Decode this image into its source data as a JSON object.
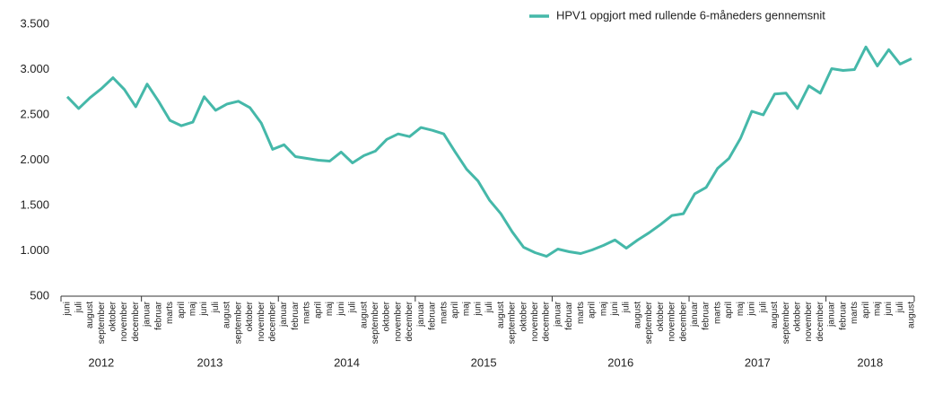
{
  "chart_data": {
    "type": "line",
    "categories": [
      "juni",
      "juli",
      "august",
      "september",
      "oktober",
      "november",
      "december",
      "januar",
      "februar",
      "marts",
      "april",
      "maj",
      "juni",
      "juli",
      "august",
      "september",
      "oktober",
      "november",
      "december",
      "januar",
      "februar",
      "marts",
      "april",
      "maj",
      "juni",
      "juli",
      "august",
      "september",
      "oktober",
      "november",
      "december",
      "januar",
      "februar",
      "marts",
      "april",
      "maj",
      "juni",
      "juli",
      "august",
      "september",
      "oktober",
      "november",
      "december",
      "januar",
      "februar",
      "marts",
      "april",
      "maj",
      "juni",
      "juli",
      "august",
      "september",
      "oktober",
      "november",
      "december",
      "januar",
      "februar",
      "marts",
      "april",
      "maj",
      "juni",
      "juli",
      "august",
      "september",
      "oktober",
      "november",
      "december",
      "januar",
      "februar",
      "marts",
      "april",
      "maj",
      "juni",
      "juli",
      "august"
    ],
    "years": [
      "2012",
      "2013",
      "2014",
      "2015",
      "2016",
      "2017",
      "2018"
    ],
    "series": [
      {
        "name": "HPV1 opgjort med rullende 6-måneders gennemsnit",
        "color": "#45b8a9",
        "values": [
          2700,
          2570,
          2690,
          2790,
          2910,
          2780,
          2590,
          2840,
          2650,
          2440,
          2380,
          2420,
          2700,
          2550,
          2620,
          2650,
          2580,
          2410,
          2120,
          2170,
          2040,
          2020,
          2000,
          1990,
          2090,
          1970,
          2050,
          2100,
          2230,
          2290,
          2260,
          2360,
          2330,
          2290,
          2090,
          1900,
          1770,
          1560,
          1410,
          1210,
          1040,
          980,
          940,
          1020,
          990,
          970,
          1010,
          1060,
          1120,
          1030,
          1120,
          1200,
          1290,
          1390,
          1410,
          1630,
          1700,
          1910,
          2020,
          2240,
          2540,
          2500,
          2730,
          2740,
          2570,
          2820,
          2740,
          3010,
          2990,
          3000,
          3250,
          3040,
          3220,
          3060,
          3120
        ]
      }
    ],
    "ylim": [
      500,
      3500
    ],
    "yticks": [
      500,
      {
        "value": 1000,
        "label": "1.000"
      },
      {
        "value": 1500,
        "label": "1.500"
      },
      {
        "value": 2000,
        "label": "2.000"
      },
      {
        "value": 2500,
        "label": "2.500"
      },
      {
        "value": 3000,
        "label": "3.000"
      },
      {
        "value": 3500,
        "label": "3.500"
      }
    ],
    "legend": "top-right"
  }
}
